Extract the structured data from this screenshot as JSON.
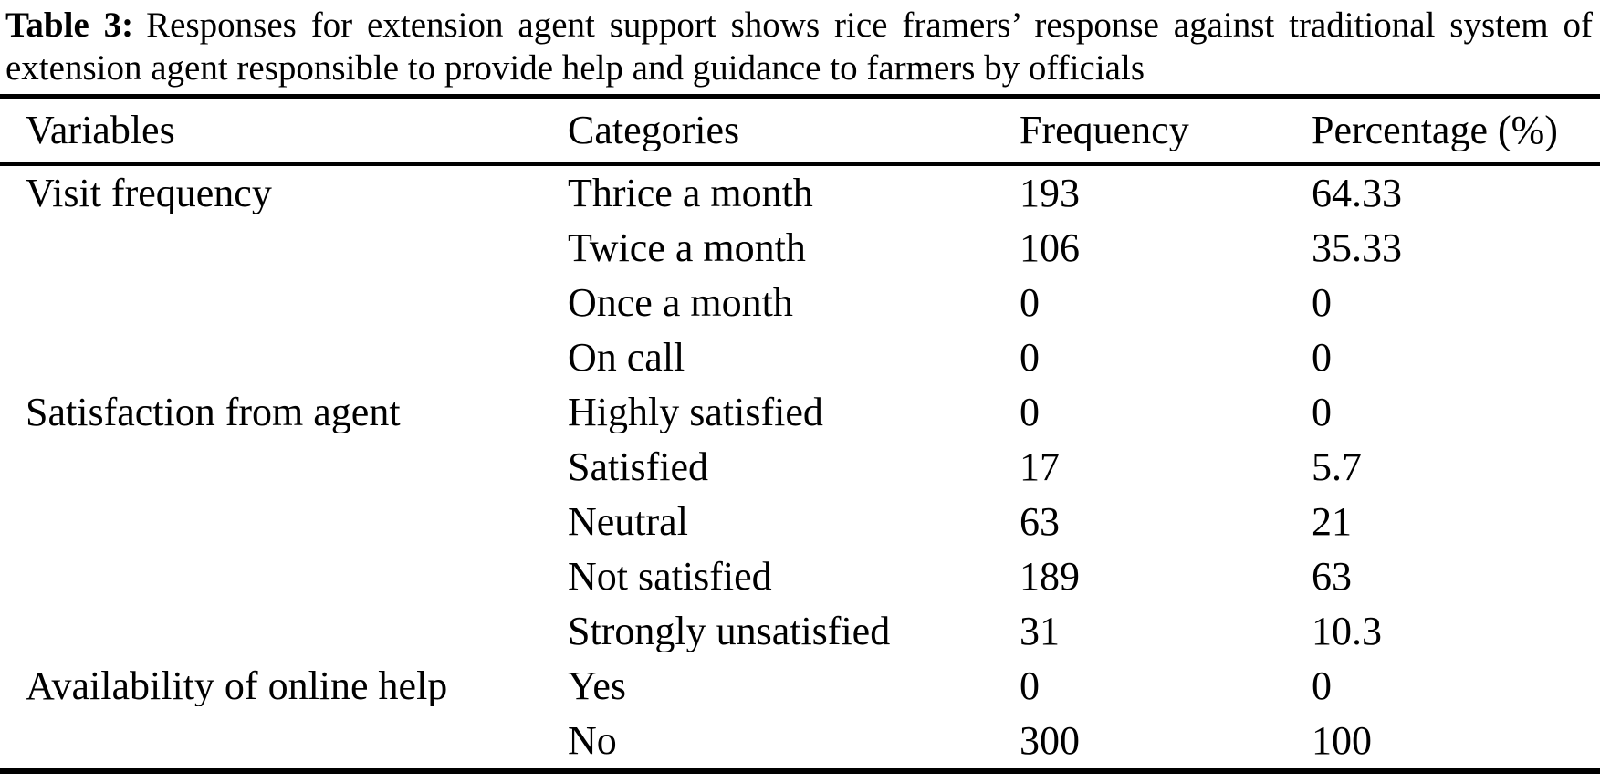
{
  "caption": {
    "label": "Table 3:",
    "text": "Responses for extension agent support shows rice framers’ response against traditional system of extension agent responsible to provide help and guidance to farmers by officials"
  },
  "table": {
    "columns": [
      "Variables",
      "Categories",
      "Frequency",
      "Percentage (%)"
    ],
    "rows": [
      {
        "variable": "Visit frequency",
        "category": "Thrice a month",
        "frequency": "193",
        "percentage": "64.33"
      },
      {
        "variable": "",
        "category": "Twice a month",
        "frequency": "106",
        "percentage": "35.33"
      },
      {
        "variable": "",
        "category": "Once a month",
        "frequency": "0",
        "percentage": "0"
      },
      {
        "variable": "",
        "category": "On call",
        "frequency": "0",
        "percentage": "0"
      },
      {
        "variable": "Satisfaction from agent",
        "category": "Highly satisfied",
        "frequency": "0",
        "percentage": "0"
      },
      {
        "variable": "",
        "category": "Satisfied",
        "frequency": "17",
        "percentage": "5.7"
      },
      {
        "variable": "",
        "category": "Neutral",
        "frequency": "63",
        "percentage": "21"
      },
      {
        "variable": "",
        "category": "Not satisfied",
        "frequency": "189",
        "percentage": "63"
      },
      {
        "variable": "",
        "category": "Strongly unsatisfied",
        "frequency": "31",
        "percentage": "10.3"
      },
      {
        "variable": "Availability of online help",
        "category": "Yes",
        "frequency": "0",
        "percentage": "0"
      },
      {
        "variable": "",
        "category": "No",
        "frequency": "300",
        "percentage": "100"
      }
    ]
  }
}
